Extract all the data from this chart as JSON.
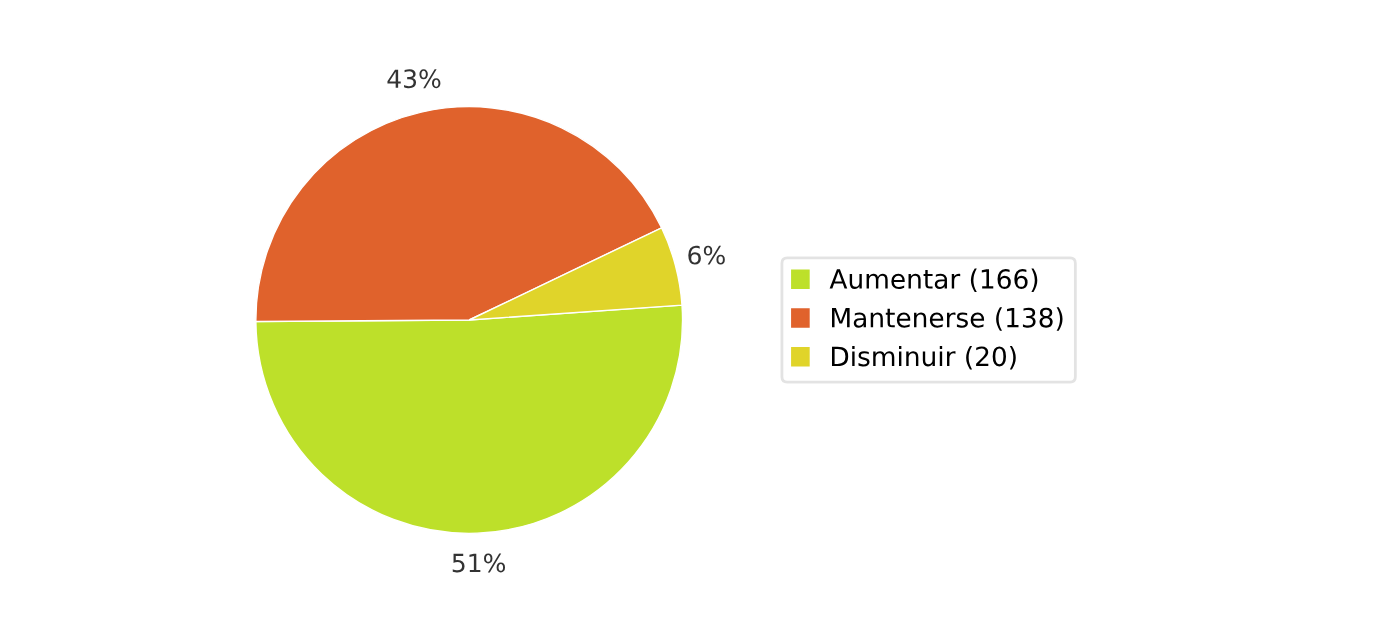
{
  "chart_data": {
    "type": "pie",
    "categories": [
      "Aumentar (166)",
      "Mantenerse (138)",
      "Disminuir (20)"
    ],
    "values": [
      51,
      43,
      6
    ],
    "colors": [
      "#bde02a",
      "#e0622c",
      "#e0d42a"
    ],
    "value_labels": [
      "51%",
      "43%",
      "6%"
    ],
    "legend": "right"
  }
}
